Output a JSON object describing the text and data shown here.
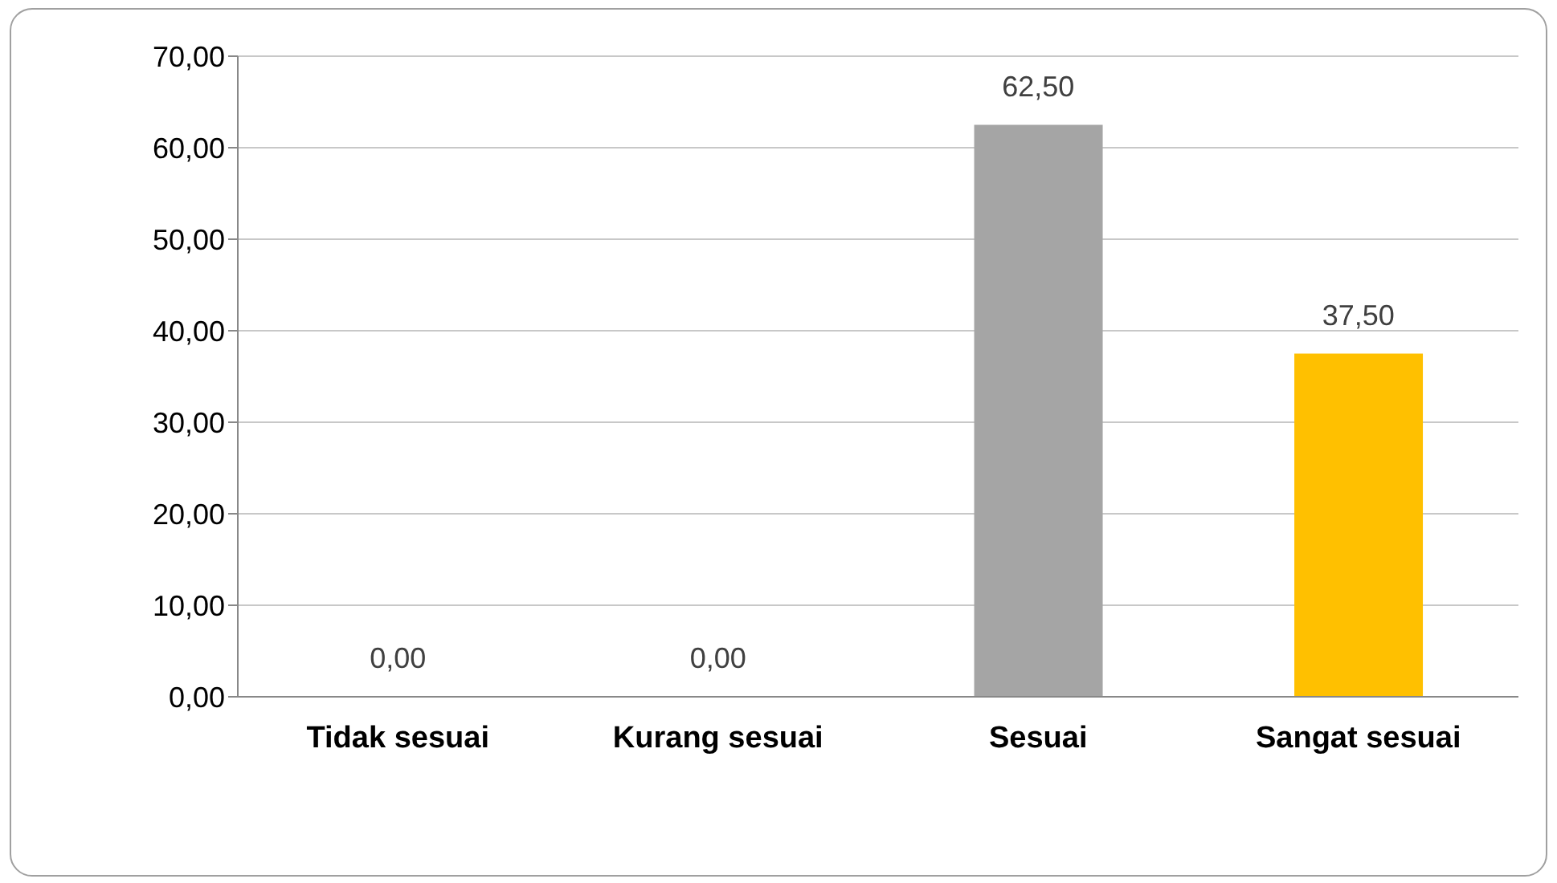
{
  "chart_data": {
    "type": "bar",
    "categories": [
      "Tidak sesuai",
      "Kurang sesuai",
      "Sesuai",
      "Sangat sesuai"
    ],
    "values": [
      0,
      0,
      62.5,
      37.5
    ],
    "colors": [
      "#4472c4",
      "#ed7d31",
      "#a5a5a5",
      "#ffc000"
    ],
    "value_labels": [
      "0,00",
      "0,00",
      "62,50",
      "37,50"
    ],
    "ylim": [
      0,
      70
    ],
    "yticks": [
      {
        "value": 0,
        "label": "0,00"
      },
      {
        "value": 10,
        "label": "10,00"
      },
      {
        "value": 20,
        "label": "20,00"
      },
      {
        "value": 30,
        "label": "30,00"
      },
      {
        "value": 40,
        "label": "40,00"
      },
      {
        "value": 50,
        "label": "50,00"
      },
      {
        "value": 60,
        "label": "60,00"
      },
      {
        "value": 70,
        "label": "70,00"
      }
    ],
    "grid": "y",
    "legend": false
  }
}
